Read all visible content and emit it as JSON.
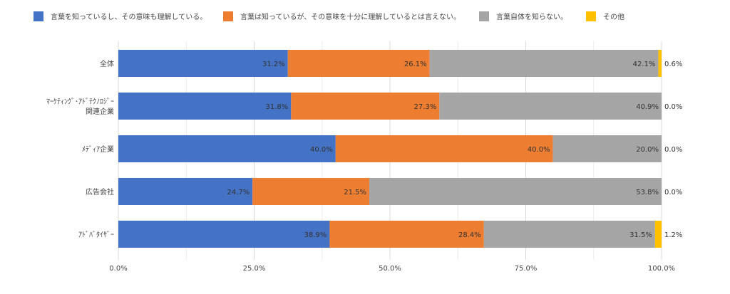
{
  "chart_data": {
    "type": "bar",
    "orientation": "horizontal",
    "stacked": true,
    "normalized": true,
    "title": "",
    "xlabel": "",
    "ylabel": "",
    "xlim": [
      0,
      100
    ],
    "x_ticks": [
      "0.0%",
      "25.0%",
      "50.0%",
      "75.0%",
      "100.0%"
    ],
    "x_tick_values": [
      0,
      25,
      50,
      75,
      100
    ],
    "grid": true,
    "legend_position": "top",
    "categories": [
      [
        "全体"
      ],
      [
        "ﾏｰｹﾃｨﾝｸﾞ･ｱﾄﾞﾃｸﾉﾛｼﾞｰ",
        "関連企業"
      ],
      [
        "ﾒﾃﾞｨｱ企業"
      ],
      [
        "広告会社"
      ],
      [
        "ｱﾄﾞﾊﾞﾀｲｻﾞｰ"
      ]
    ],
    "series": [
      {
        "name": "言葉を知っているし、その意味も理解している。",
        "color": "#4472C4",
        "values": [
          31.2,
          31.8,
          40.0,
          24.7,
          38.9
        ],
        "labels": [
          "31.2%",
          "31.8%",
          "40.0%",
          "24.7%",
          "38.9%"
        ]
      },
      {
        "name": "言葉は知っているが、その意味を十分に理解しているとは言えない。",
        "color": "#ED7D31",
        "values": [
          26.1,
          27.3,
          40.0,
          21.5,
          28.4
        ],
        "labels": [
          "26.1%",
          "27.3%",
          "40.0%",
          "21.5%",
          "28.4%"
        ]
      },
      {
        "name": "言葉自体を知らない。",
        "color": "#A5A5A5",
        "values": [
          42.1,
          40.9,
          20.0,
          53.8,
          31.5
        ],
        "labels": [
          "42.1%",
          "40.9%",
          "20.0%",
          "53.8%",
          "31.5%"
        ]
      },
      {
        "name": "その他",
        "color": "#FFC000",
        "values": [
          0.6,
          0.0,
          0.0,
          0.0,
          1.2
        ],
        "labels": [
          "0.6%",
          "0.0%",
          "0.0%",
          "0.0%",
          "1.2%"
        ]
      }
    ]
  }
}
